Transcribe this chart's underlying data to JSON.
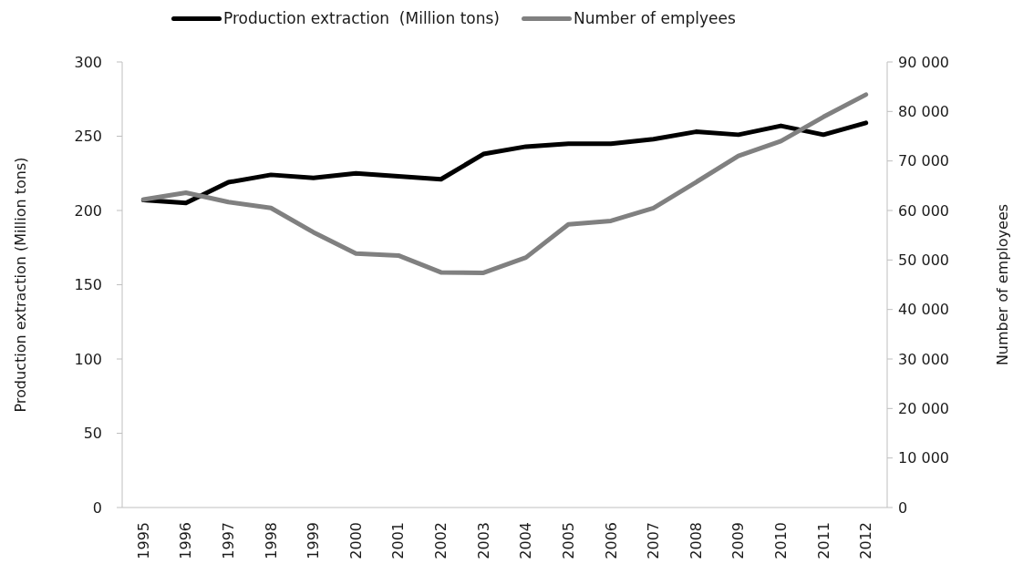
{
  "chart_data": {
    "type": "line",
    "ylabel": "Production extraction (Million tons)",
    "y2label": "Number of employees",
    "categories": [
      "1995",
      "1996",
      "1997",
      "1998",
      "1999",
      "2000",
      "2001",
      "2002",
      "2003",
      "2004",
      "2005",
      "2006",
      "2007",
      "2008",
      "2009",
      "2010",
      "2011",
      "2012"
    ],
    "series": [
      {
        "name": "Production extraction  (Million tons)",
        "color": "#000000",
        "values": [
          207,
          205,
          219,
          224,
          222,
          225,
          223,
          221,
          238,
          243,
          245,
          245,
          248,
          253,
          251,
          257,
          251,
          259
        ]
      },
      {
        "name": "Number of emplyees",
        "color": "#808080",
        "axis": "y2",
        "values": [
          62200,
          63600,
          61700,
          60500,
          55600,
          51300,
          50900,
          47500,
          47400,
          50500,
          57200,
          57900,
          60500,
          65700,
          71000,
          74000,
          78900,
          83400
        ]
      }
    ],
    "ylim": [
      0,
      300
    ],
    "yticks": [
      0,
      50,
      100,
      150,
      200,
      250,
      300
    ],
    "y2lim": [
      0,
      90000
    ],
    "y2ticks": [
      0,
      {
        "value": 10000,
        "label": "10 000"
      },
      {
        "value": 20000,
        "label": "20 000"
      },
      {
        "value": 30000,
        "label": "30 000"
      },
      {
        "value": 40000,
        "label": "40 000"
      },
      {
        "value": 50000,
        "label": "50 000"
      },
      {
        "value": 60000,
        "label": "60 000"
      },
      {
        "value": 70000,
        "label": "70 000"
      },
      {
        "value": 80000,
        "label": "80 000"
      },
      {
        "value": 90000,
        "label": "90 000"
      }
    ],
    "legend": "top",
    "marker": "none",
    "line_style": "solid"
  }
}
